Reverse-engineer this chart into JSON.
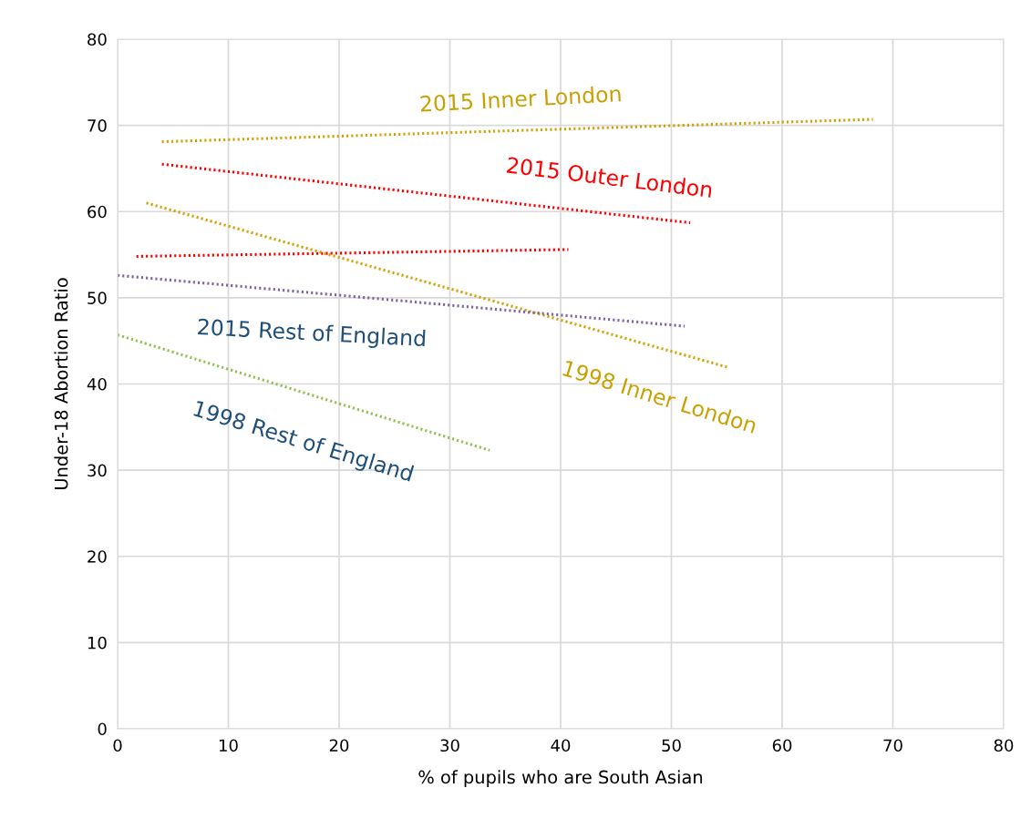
{
  "chart_data": {
    "type": "line",
    "xlabel": "% of pupils who are South Asian",
    "ylabel": "Under-18 Abortion Ratio",
    "xlim": [
      0,
      80
    ],
    "xticks": [
      0,
      10,
      20,
      30,
      40,
      50,
      60,
      70,
      80
    ],
    "ylim": [
      0,
      80
    ],
    "yticks": [
      0,
      10,
      20,
      30,
      40,
      50,
      60,
      70,
      80
    ],
    "grid": true,
    "line_style": "dotted",
    "marker": "none",
    "series": [
      {
        "color": "#d4a000",
        "x": [
          4.0,
          68.2
        ],
        "values": [
          68.1,
          70.7
        ]
      },
      {
        "color": "#ff0000",
        "x": [
          4.0,
          51.7
        ],
        "values": [
          65.5,
          58.7
        ]
      },
      {
        "color": "#ff0000",
        "x": [
          1.7,
          40.7
        ],
        "values": [
          54.8,
          55.6
        ]
      },
      {
        "color": "#d4a000",
        "x": [
          2.6,
          55.2
        ],
        "values": [
          61.0,
          41.9
        ]
      },
      {
        "color": "#8064a2",
        "x": [
          0,
          51.2
        ],
        "values": [
          52.6,
          46.7
        ]
      },
      {
        "color": "#92c050",
        "x": [
          0,
          33.6
        ],
        "values": [
          45.7,
          32.3
        ]
      }
    ],
    "annotations": [
      "2015 Inner London",
      "2015 Outer London",
      "1998 Inner London",
      "2015 Rest of England",
      "1998 Rest of England"
    ]
  }
}
